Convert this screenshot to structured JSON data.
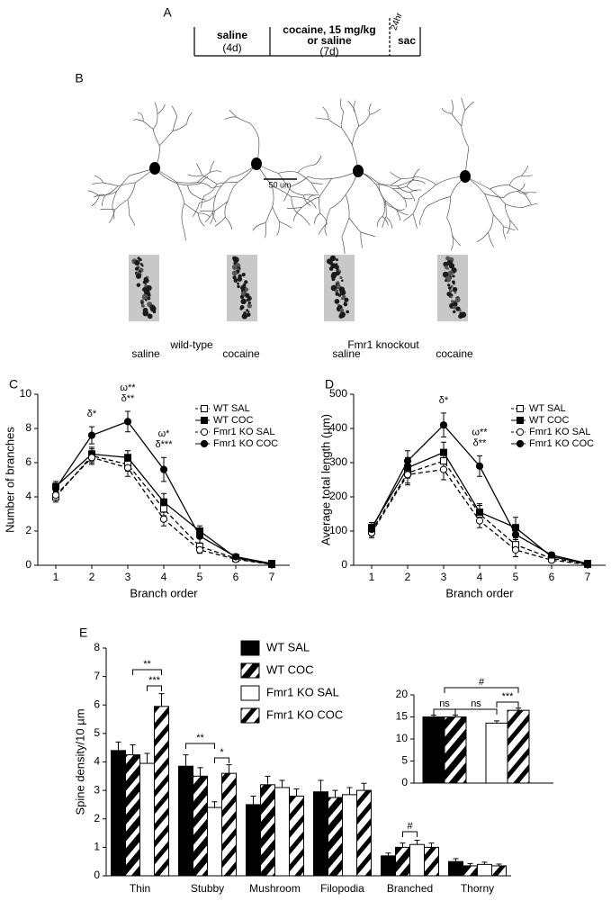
{
  "timeline": {
    "label": "A",
    "segments": [
      [
        "saline",
        "(4d)"
      ],
      [
        "cocaine, 15 mg/kg",
        "or saline",
        "(7d)"
      ]
    ],
    "interval": "24hr",
    "end": "sac"
  },
  "neurons": {
    "label": "B",
    "scale_bar": "50 um",
    "groups": [
      "wild-type",
      "Fmr1 knockout"
    ],
    "conditions": [
      "saline",
      "cocaine",
      "saline",
      "cocaine"
    ]
  },
  "chart_data": [
    {
      "type": "line",
      "label": "C",
      "x_label": "Branch order",
      "y_label": "Number of branches",
      "x": [
        1,
        2,
        3,
        4,
        5,
        6,
        7
      ],
      "xlim": [
        0.5,
        7.5
      ],
      "xticks": [
        1,
        2,
        3,
        4,
        5,
        6,
        7
      ],
      "ylim": [
        0,
        10
      ],
      "yticks": [
        0,
        2,
        4,
        6,
        8,
        10
      ],
      "legend": "upper right",
      "series": [
        {
          "name": "WT SAL",
          "color": "#000000",
          "marker": "square",
          "filled": false,
          "dashed": true,
          "values": [
            4.0,
            6.4,
            5.9,
            3.3,
            1.1,
            0.4,
            0.05
          ],
          "errors": [
            0.3,
            0.4,
            0.4,
            0.4,
            0.2,
            0.1,
            0.05
          ]
        },
        {
          "name": "WT COC",
          "color": "#000000",
          "marker": "square",
          "filled": true,
          "dashed": false,
          "values": [
            4.6,
            6.5,
            6.3,
            3.7,
            2.0,
            0.45,
            0.1
          ],
          "errors": [
            0.3,
            0.4,
            0.4,
            0.5,
            0.3,
            0.1,
            0.05
          ]
        },
        {
          "name": "Fmr1 KO SAL",
          "color": "#000000",
          "marker": "circle",
          "filled": false,
          "dashed": true,
          "values": [
            4.1,
            6.3,
            5.7,
            2.7,
            0.9,
            0.35,
            0.05
          ],
          "errors": [
            0.3,
            0.4,
            0.5,
            0.4,
            0.2,
            0.1,
            0.05
          ]
        },
        {
          "name": "Fmr1 KO COC",
          "color": "#000000",
          "marker": "circle",
          "filled": true,
          "dashed": false,
          "values": [
            4.5,
            7.6,
            8.4,
            5.6,
            1.7,
            0.5,
            0.1
          ],
          "errors": [
            0.3,
            0.5,
            0.6,
            0.7,
            0.4,
            0.1,
            0.05
          ]
        }
      ],
      "annotations": [
        {
          "text": "δ*",
          "x": 2
        },
        {
          "text": "δ**",
          "x": 3
        },
        {
          "text": "ω**",
          "x": 3
        },
        {
          "text": "δ***",
          "x": 4
        },
        {
          "text": "ω*",
          "x": 4
        }
      ]
    },
    {
      "type": "line",
      "label": "D",
      "x_label": "Branch order",
      "y_label": "Average total length (µm)",
      "x": [
        1,
        2,
        3,
        4,
        5,
        6,
        7
      ],
      "xlim": [
        0.5,
        7.5
      ],
      "xticks": [
        1,
        2,
        3,
        4,
        5,
        6,
        7
      ],
      "ylim": [
        0,
        500
      ],
      "yticks": [
        0,
        100,
        200,
        300,
        400,
        500
      ],
      "legend": "upper right",
      "series": [
        {
          "name": "WT SAL",
          "color": "#000000",
          "marker": "square",
          "filled": false,
          "dashed": true,
          "values": [
            100,
            270,
            305,
            150,
            60,
            20,
            3
          ],
          "errors": [
            15,
            30,
            30,
            25,
            15,
            5,
            3
          ]
        },
        {
          "name": "WT COC",
          "color": "#000000",
          "marker": "square",
          "filled": true,
          "dashed": false,
          "values": [
            110,
            285,
            330,
            155,
            110,
            25,
            5
          ],
          "errors": [
            15,
            30,
            30,
            25,
            30,
            5,
            3
          ]
        },
        {
          "name": "Fmr1 KO SAL",
          "color": "#000000",
          "marker": "circle",
          "filled": false,
          "dashed": true,
          "values": [
            95,
            265,
            280,
            130,
            45,
            15,
            2
          ],
          "errors": [
            15,
            30,
            30,
            20,
            20,
            5,
            2
          ]
        },
        {
          "name": "Fmr1 KO COC",
          "color": "#000000",
          "marker": "circle",
          "filled": true,
          "dashed": false,
          "values": [
            105,
            305,
            410,
            290,
            90,
            30,
            5
          ],
          "errors": [
            15,
            30,
            35,
            30,
            25,
            8,
            3
          ]
        }
      ],
      "annotations": [
        {
          "text": "δ*",
          "x": 3
        },
        {
          "text": "δ**",
          "x": 4
        },
        {
          "text": "ω**",
          "x": 4
        }
      ]
    },
    {
      "type": "bar",
      "label": "E",
      "y_label": "Spine density/10 µm",
      "categories": [
        "Thin",
        "Stubby",
        "Mushroom",
        "Filopodia",
        "Branched",
        "Thorny"
      ],
      "ylim": [
        0,
        8
      ],
      "yticks": [
        0,
        1,
        2,
        3,
        4,
        5,
        6,
        7,
        8
      ],
      "legend": "upper center",
      "series": [
        {
          "name": "WT SAL",
          "color": "#000000",
          "hatched": false,
          "values": [
            4.4,
            3.85,
            2.5,
            2.95,
            0.7,
            0.5
          ],
          "errors": [
            0.3,
            0.4,
            0.3,
            0.4,
            0.1,
            0.1
          ]
        },
        {
          "name": "WT COC",
          "color": "#000000",
          "hatched": true,
          "values": [
            4.25,
            3.5,
            3.2,
            2.75,
            1.0,
            0.35
          ],
          "errors": [
            0.35,
            0.3,
            0.3,
            0.25,
            0.15,
            0.08
          ]
        },
        {
          "name": "Fmr1 KO SAL",
          "color": "#ffffff",
          "hatched": false,
          "values": [
            3.95,
            2.4,
            3.1,
            2.85,
            1.1,
            0.4
          ],
          "errors": [
            0.35,
            0.2,
            0.25,
            0.25,
            0.15,
            0.08
          ]
        },
        {
          "name": "Fmr1 KO COC",
          "color": "#ffffff",
          "hatched": true,
          "values": [
            5.95,
            3.6,
            2.8,
            3.0,
            1.0,
            0.35
          ],
          "errors": [
            0.45,
            0.3,
            0.25,
            0.25,
            0.15,
            0.06
          ]
        }
      ],
      "annotations": [
        "**",
        "***",
        "**",
        "*",
        "#"
      ]
    },
    {
      "type": "inset",
      "values": [
        15,
        15,
        13.6,
        16.5
      ],
      "errors": [
        0.4,
        0.4,
        0.5,
        0.5
      ],
      "ylim": [
        0,
        20
      ],
      "yticks": [
        0,
        5,
        10,
        15,
        20
      ],
      "annotations": [
        "ns",
        "ns",
        "#",
        "***"
      ]
    }
  ]
}
